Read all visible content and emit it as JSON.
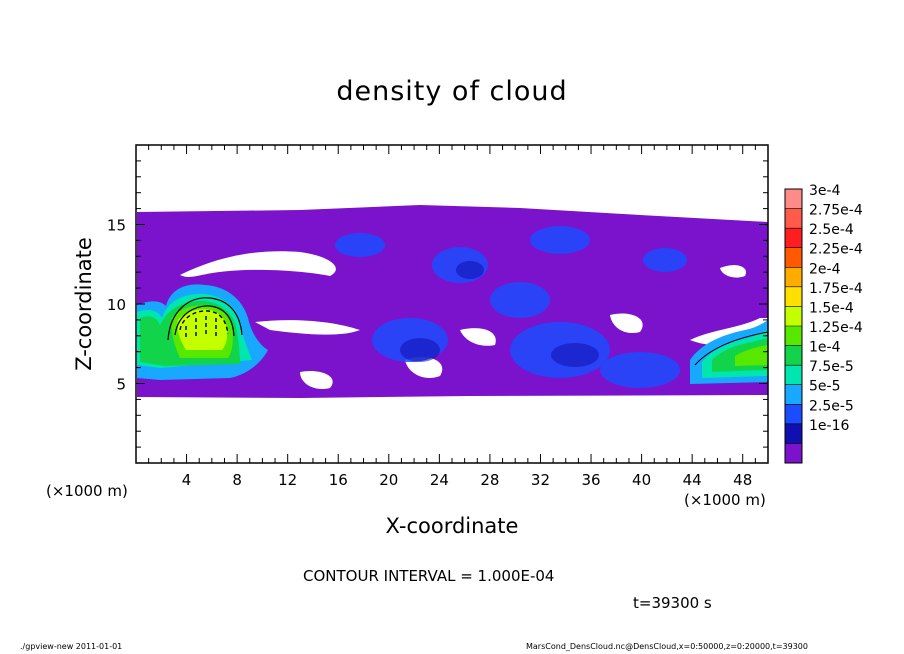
{
  "chart_data": {
    "type": "heatmap",
    "title": "density of cloud",
    "xlabel": "X-coordinate",
    "ylabel": "Z-coordinate",
    "x_unit": "(×1000 m)",
    "xlim": [
      0,
      50
    ],
    "ylim": [
      0,
      20
    ],
    "x_ticks": [
      "4",
      "8",
      "12",
      "16",
      "20",
      "24",
      "28",
      "32",
      "36",
      "40",
      "44",
      "48"
    ],
    "y_ticks": [
      "5",
      "10",
      "15"
    ],
    "colorbar": {
      "labels": [
        "3e-4",
        "2.75e-4",
        "2.5e-4",
        "2.25e-4",
        "2e-4",
        "1.75e-4",
        "1.5e-4",
        "1.25e-4",
        "1e-4",
        "7.5e-5",
        "5e-5",
        "2.5e-5",
        "1e-16"
      ],
      "colors": [
        "#ff8a8a",
        "#ff5a4a",
        "#ff1e1e",
        "#ff5a00",
        "#ffab00",
        "#ffe000",
        "#c4ff00",
        "#58e800",
        "#12d44a",
        "#00e6ae",
        "#18a8ff",
        "#1c4cff",
        "#1010b0",
        "#7b12cc"
      ]
    },
    "cloud_layer_z_range": [
      4.5,
      16
    ],
    "plumes": [
      {
        "x_range": [
          0,
          10
        ],
        "z_range": [
          4.5,
          11
        ],
        "peak": "1.75e-4"
      },
      {
        "x_range": [
          43,
          50
        ],
        "z_range": [
          4.5,
          9.5
        ],
        "peak": "1.5e-4"
      }
    ],
    "contour_interval": "CONTOUR INTERVAL = 1.000E-04",
    "time": "t=39300 s"
  },
  "footer": {
    "left": "./gpview-new   2011-01-01",
    "right": "MarsCond_DensCloud.nc@DensCloud,x=0:50000,z=0:20000,t=39300"
  }
}
